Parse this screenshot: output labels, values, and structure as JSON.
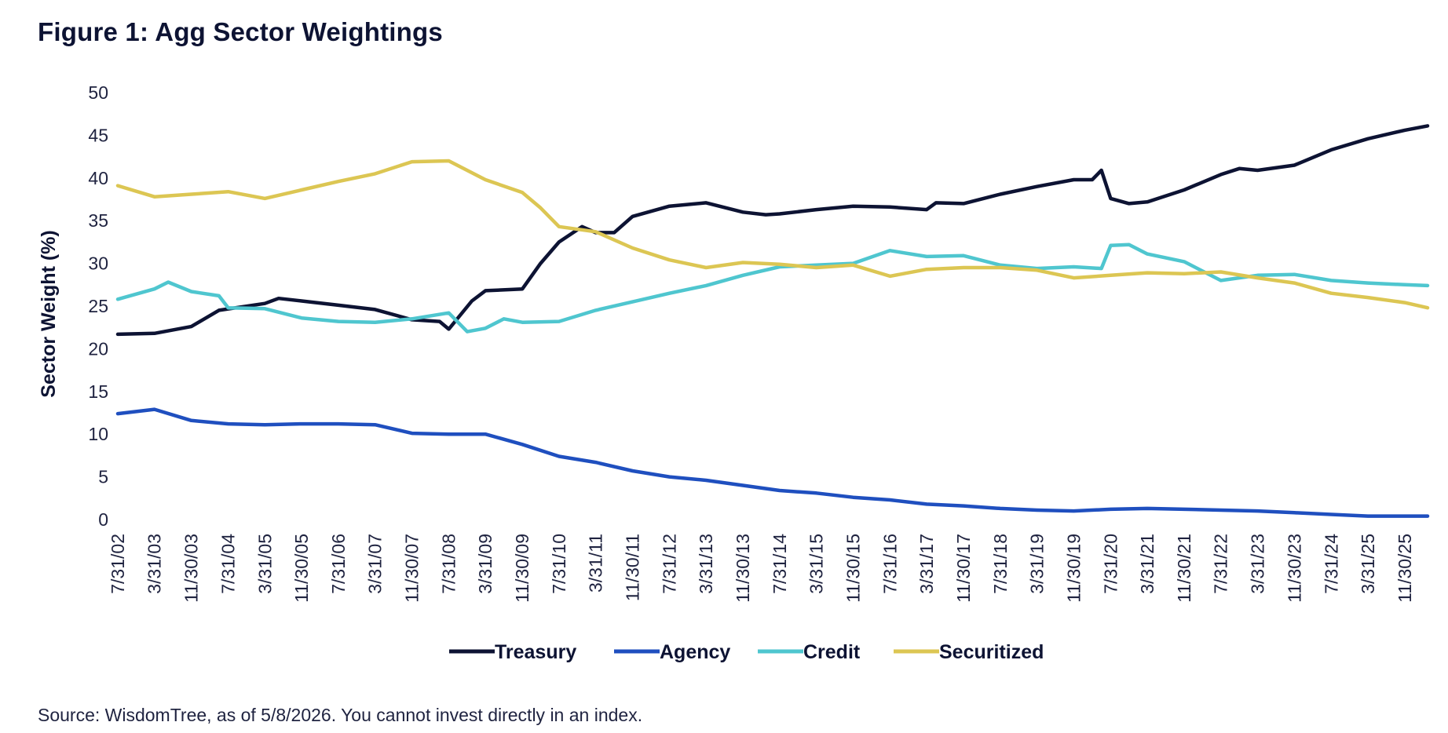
{
  "figure": {
    "title": "Figure 1: Agg Sector Weightings",
    "source": "Source: WisdomTree, as of 5/8/2026. You cannot invest directly in an index."
  },
  "chart_data": {
    "type": "line",
    "title": "Figure 1: Agg Sector Weightings",
    "xlabel": "",
    "ylabel": "Sector Weight (%)",
    "ylim": [
      0,
      50
    ],
    "yticks": [
      0,
      5,
      10,
      15,
      20,
      25,
      30,
      35,
      40,
      45,
      50
    ],
    "grid": false,
    "legend_position": "bottom",
    "x_tick_labels": [
      "7/31/02",
      "3/31/03",
      "11/30/03",
      "7/31/04",
      "3/31/05",
      "11/30/05",
      "7/31/06",
      "3/31/07",
      "11/30/07",
      "7/31/08",
      "3/31/09",
      "11/30/09",
      "7/31/10",
      "3/31/11",
      "11/30/11",
      "7/31/12",
      "3/31/13",
      "11/30/13",
      "7/31/14",
      "3/31/15",
      "11/30/15",
      "7/31/16",
      "3/31/17",
      "11/30/17",
      "7/31/18",
      "3/31/19",
      "11/30/19",
      "7/31/20",
      "3/31/21",
      "11/30/21",
      "7/31/22",
      "3/31/23",
      "11/30/23",
      "7/31/24",
      "3/31/25",
      "11/30/25"
    ],
    "x_range": [
      "7/31/02",
      "4/30/26"
    ],
    "series": [
      {
        "name": "Treasury",
        "color": "#0d1333",
        "points": [
          [
            "7/31/02",
            21.7
          ],
          [
            "3/31/03",
            21.8
          ],
          [
            "11/30/03",
            22.6
          ],
          [
            "5/31/04",
            24.5
          ],
          [
            "3/31/05",
            25.3
          ],
          [
            "6/30/05",
            25.9
          ],
          [
            "11/30/05",
            25.6
          ],
          [
            "7/31/06",
            25.1
          ],
          [
            "3/31/07",
            24.6
          ],
          [
            "11/30/07",
            23.4
          ],
          [
            "5/31/08",
            23.2
          ],
          [
            "7/31/08",
            22.3
          ],
          [
            "12/31/08",
            25.6
          ],
          [
            "3/31/09",
            26.8
          ],
          [
            "11/30/09",
            27.0
          ],
          [
            "3/31/10",
            30.0
          ],
          [
            "7/31/10",
            32.5
          ],
          [
            "12/31/10",
            34.3
          ],
          [
            "3/31/11",
            33.6
          ],
          [
            "7/31/11",
            33.6
          ],
          [
            "11/30/11",
            35.5
          ],
          [
            "7/31/12",
            36.7
          ],
          [
            "3/31/13",
            37.1
          ],
          [
            "11/30/13",
            36.0
          ],
          [
            "4/30/14",
            35.7
          ],
          [
            "7/31/14",
            35.8
          ],
          [
            "3/31/15",
            36.3
          ],
          [
            "11/30/15",
            36.7
          ],
          [
            "7/31/16",
            36.6
          ],
          [
            "3/31/17",
            36.3
          ],
          [
            "5/31/17",
            37.1
          ],
          [
            "11/30/17",
            37.0
          ],
          [
            "7/31/18",
            38.1
          ],
          [
            "3/31/19",
            39.0
          ],
          [
            "11/30/19",
            39.8
          ],
          [
            "3/31/20",
            39.8
          ],
          [
            "5/31/20",
            40.9
          ],
          [
            "7/31/20",
            37.6
          ],
          [
            "11/30/20",
            37.0
          ],
          [
            "3/31/21",
            37.2
          ],
          [
            "11/30/21",
            38.6
          ],
          [
            "7/31/22",
            40.4
          ],
          [
            "11/30/22",
            41.1
          ],
          [
            "3/31/23",
            40.9
          ],
          [
            "11/30/23",
            41.5
          ],
          [
            "7/31/24",
            43.3
          ],
          [
            "3/31/25",
            44.6
          ],
          [
            "11/30/25",
            45.6
          ],
          [
            "4/30/26",
            46.1
          ]
        ]
      },
      {
        "name": "Agency",
        "color": "#1f4fbf",
        "points": [
          [
            "7/31/02",
            12.4
          ],
          [
            "3/31/03",
            12.9
          ],
          [
            "11/30/03",
            11.6
          ],
          [
            "7/31/04",
            11.2
          ],
          [
            "3/31/05",
            11.1
          ],
          [
            "11/30/05",
            11.2
          ],
          [
            "7/31/06",
            11.2
          ],
          [
            "3/31/07",
            11.1
          ],
          [
            "11/30/07",
            10.1
          ],
          [
            "7/31/08",
            10.0
          ],
          [
            "3/31/09",
            10.0
          ],
          [
            "11/30/09",
            8.8
          ],
          [
            "7/31/10",
            7.4
          ],
          [
            "3/31/11",
            6.7
          ],
          [
            "11/30/11",
            5.7
          ],
          [
            "7/31/12",
            5.0
          ],
          [
            "3/31/13",
            4.6
          ],
          [
            "11/30/13",
            4.0
          ],
          [
            "7/31/14",
            3.4
          ],
          [
            "3/31/15",
            3.1
          ],
          [
            "11/30/15",
            2.6
          ],
          [
            "7/31/16",
            2.3
          ],
          [
            "3/31/17",
            1.8
          ],
          [
            "11/30/17",
            1.6
          ],
          [
            "7/31/18",
            1.3
          ],
          [
            "3/31/19",
            1.1
          ],
          [
            "11/30/19",
            1.0
          ],
          [
            "7/31/20",
            1.2
          ],
          [
            "3/31/21",
            1.3
          ],
          [
            "11/30/21",
            1.2
          ],
          [
            "7/31/22",
            1.1
          ],
          [
            "3/31/23",
            1.0
          ],
          [
            "11/30/23",
            0.8
          ],
          [
            "7/31/24",
            0.6
          ],
          [
            "3/31/25",
            0.4
          ],
          [
            "11/30/25",
            0.4
          ],
          [
            "4/30/26",
            0.4
          ]
        ]
      },
      {
        "name": "Credit",
        "color": "#4fc6cf",
        "points": [
          [
            "7/31/02",
            25.8
          ],
          [
            "3/31/03",
            27.0
          ],
          [
            "6/30/03",
            27.8
          ],
          [
            "11/30/03",
            26.7
          ],
          [
            "5/31/04",
            26.2
          ],
          [
            "7/31/04",
            24.8
          ],
          [
            "3/31/05",
            24.7
          ],
          [
            "11/30/05",
            23.6
          ],
          [
            "7/31/06",
            23.2
          ],
          [
            "3/31/07",
            23.1
          ],
          [
            "11/30/07",
            23.5
          ],
          [
            "7/31/08",
            24.2
          ],
          [
            "11/30/08",
            22.0
          ],
          [
            "3/31/09",
            22.4
          ],
          [
            "7/31/09",
            23.5
          ],
          [
            "11/30/09",
            23.1
          ],
          [
            "7/31/10",
            23.2
          ],
          [
            "3/31/11",
            24.5
          ],
          [
            "11/30/11",
            25.5
          ],
          [
            "7/31/12",
            26.5
          ],
          [
            "3/31/13",
            27.4
          ],
          [
            "11/30/13",
            28.6
          ],
          [
            "7/31/14",
            29.6
          ],
          [
            "3/31/15",
            29.8
          ],
          [
            "11/30/15",
            30.0
          ],
          [
            "7/31/16",
            31.5
          ],
          [
            "3/31/17",
            30.8
          ],
          [
            "11/30/17",
            30.9
          ],
          [
            "7/31/18",
            29.8
          ],
          [
            "3/31/19",
            29.4
          ],
          [
            "11/30/19",
            29.6
          ],
          [
            "5/31/20",
            29.4
          ],
          [
            "7/31/20",
            32.1
          ],
          [
            "11/30/20",
            32.2
          ],
          [
            "3/31/21",
            31.1
          ],
          [
            "11/30/21",
            30.2
          ],
          [
            "7/31/22",
            28.0
          ],
          [
            "3/31/23",
            28.6
          ],
          [
            "11/30/23",
            28.7
          ],
          [
            "7/31/24",
            28.0
          ],
          [
            "3/31/25",
            27.7
          ],
          [
            "11/30/25",
            27.5
          ],
          [
            "4/30/26",
            27.4
          ]
        ]
      },
      {
        "name": "Securitized",
        "color": "#dcc653",
        "points": [
          [
            "7/31/02",
            39.1
          ],
          [
            "3/31/03",
            37.8
          ],
          [
            "11/30/03",
            38.1
          ],
          [
            "7/31/04",
            38.4
          ],
          [
            "3/31/05",
            37.6
          ],
          [
            "11/30/05",
            38.6
          ],
          [
            "7/31/06",
            39.6
          ],
          [
            "3/31/07",
            40.5
          ],
          [
            "11/30/07",
            41.9
          ],
          [
            "7/31/08",
            42.0
          ],
          [
            "3/31/09",
            39.8
          ],
          [
            "11/30/09",
            38.3
          ],
          [
            "3/31/10",
            36.5
          ],
          [
            "7/31/10",
            34.3
          ],
          [
            "3/31/11",
            33.7
          ],
          [
            "11/30/11",
            31.8
          ],
          [
            "7/31/12",
            30.4
          ],
          [
            "3/31/13",
            29.5
          ],
          [
            "11/30/13",
            30.1
          ],
          [
            "7/31/14",
            29.9
          ],
          [
            "3/31/15",
            29.5
          ],
          [
            "11/30/15",
            29.8
          ],
          [
            "7/31/16",
            28.5
          ],
          [
            "3/31/17",
            29.3
          ],
          [
            "11/30/17",
            29.5
          ],
          [
            "7/31/18",
            29.5
          ],
          [
            "3/31/19",
            29.2
          ],
          [
            "11/30/19",
            28.3
          ],
          [
            "7/31/20",
            28.6
          ],
          [
            "3/31/21",
            28.9
          ],
          [
            "11/30/21",
            28.8
          ],
          [
            "7/31/22",
            29.0
          ],
          [
            "3/31/23",
            28.3
          ],
          [
            "11/30/23",
            27.7
          ],
          [
            "7/31/24",
            26.5
          ],
          [
            "3/31/25",
            26.0
          ],
          [
            "11/30/25",
            25.4
          ],
          [
            "4/30/26",
            24.8
          ]
        ]
      }
    ]
  }
}
